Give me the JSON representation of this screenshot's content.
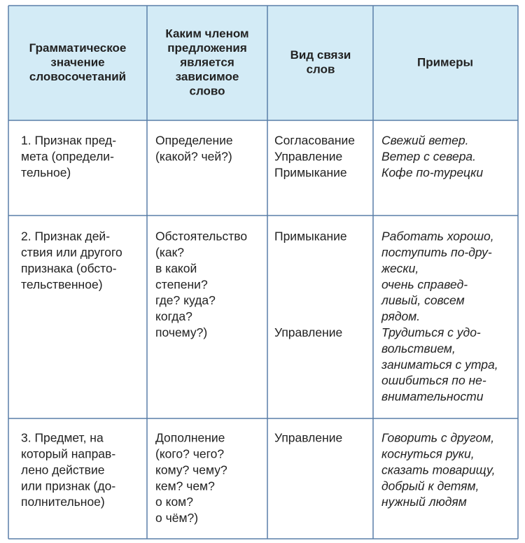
{
  "table": {
    "header": [
      [
        "Грамматическое",
        "значение",
        "словосочетаний"
      ],
      [
        "Каким членом",
        "предложения",
        "является",
        "зависимое",
        "слово"
      ],
      [
        "Вид связи",
        "слов"
      ],
      [
        "Примеры"
      ]
    ],
    "rows": [
      [
        [
          "1. Признак пред-",
          "мета (определи-",
          "тельное)"
        ],
        [
          "Определение",
          "(какой? чей?)"
        ],
        [
          "Согласование",
          "Управление",
          "Примыкание"
        ],
        [
          "Свежий ветер.",
          "Ветер с севера.",
          "Кофе по-турецки"
        ]
      ],
      [
        [
          "2. Признак дей-",
          "ствия или другого",
          "признака (обсто-",
          "тельственное)"
        ],
        [
          "Обстоятельство",
          "(как?",
          "в какой",
          "степени?",
          "где? куда?",
          "когда?",
          "почему?)"
        ],
        [
          "Примыкание",
          "Управление"
        ],
        [
          "Работать хорошо,",
          "поступить по-дру-",
          "жески,",
          "очень справед-",
          "ливый, совсем",
          "рядом.",
          "Трудиться с удо-",
          "вольствием,",
          "заниматься с утра,",
          "ошибиться по не-",
          "внимательности"
        ]
      ],
      [
        [
          "3. Предмет, на",
          "который направ-",
          "лено действие",
          "или признак (до-",
          "полнительное)"
        ],
        [
          "Дополнение",
          "(кого? чего?",
          "кому? чему?",
          "кем? чем?",
          "о ком?",
          "о чём?)"
        ],
        [
          "Управление"
        ],
        [
          "Говорить с другом,",
          "коснуться руки,",
          "сказать товарищу,",
          "добрый к детям,",
          "нужный людям"
        ]
      ]
    ]
  }
}
